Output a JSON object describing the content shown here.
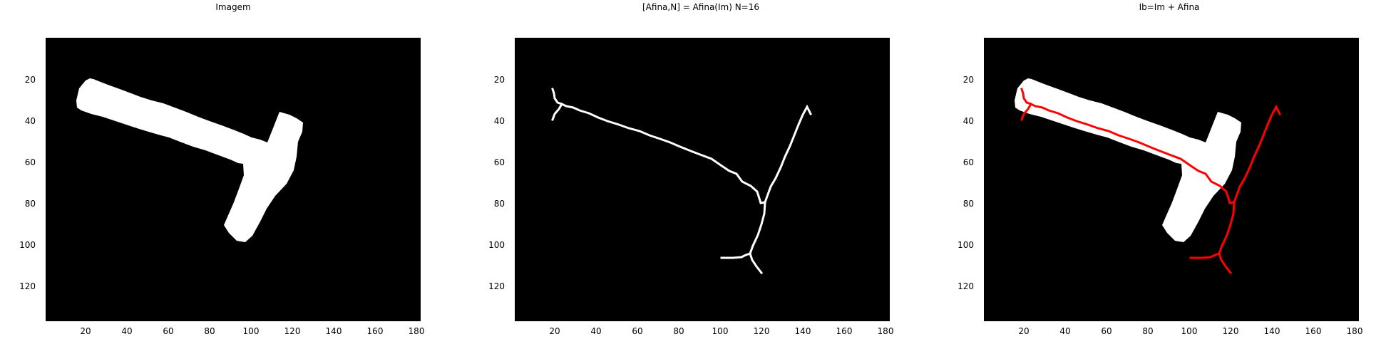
{
  "figure": {
    "background": "#ffffff",
    "panels": [
      {
        "id": "imagem",
        "title": "Imagem",
        "x_ticks": [
          "20",
          "40",
          "60",
          "80",
          "100",
          "120",
          "140",
          "160",
          "180"
        ],
        "y_ticks": [
          "20",
          "40",
          "60",
          "80",
          "100",
          "120"
        ],
        "image_layers": [
          {
            "layer": "binary-shape",
            "color": "#ffffff"
          }
        ]
      },
      {
        "id": "afina",
        "title": "[Afina,N] = Afina(Im)  N=16",
        "x_ticks": [
          "20",
          "40",
          "60",
          "80",
          "100",
          "120",
          "140",
          "160",
          "180"
        ],
        "y_ticks": [
          "20",
          "40",
          "60",
          "80",
          "100",
          "120"
        ],
        "image_layers": [
          {
            "layer": "skeleton",
            "color": "#ffffff"
          }
        ]
      },
      {
        "id": "ib",
        "title": "Ib=Im + Afina",
        "x_ticks": [
          "20",
          "40",
          "60",
          "80",
          "100",
          "120",
          "140",
          "160",
          "180"
        ],
        "y_ticks": [
          "20",
          "40",
          "60",
          "80",
          "100",
          "120"
        ],
        "image_layers": [
          {
            "layer": "binary-shape",
            "color": "#ffffff"
          },
          {
            "layer": "skeleton",
            "color": "#ff0000"
          }
        ]
      }
    ],
    "image_background": "#000000",
    "axis_limits": {
      "x": [
        0,
        182
      ],
      "y": [
        0,
        137
      ]
    }
  }
}
